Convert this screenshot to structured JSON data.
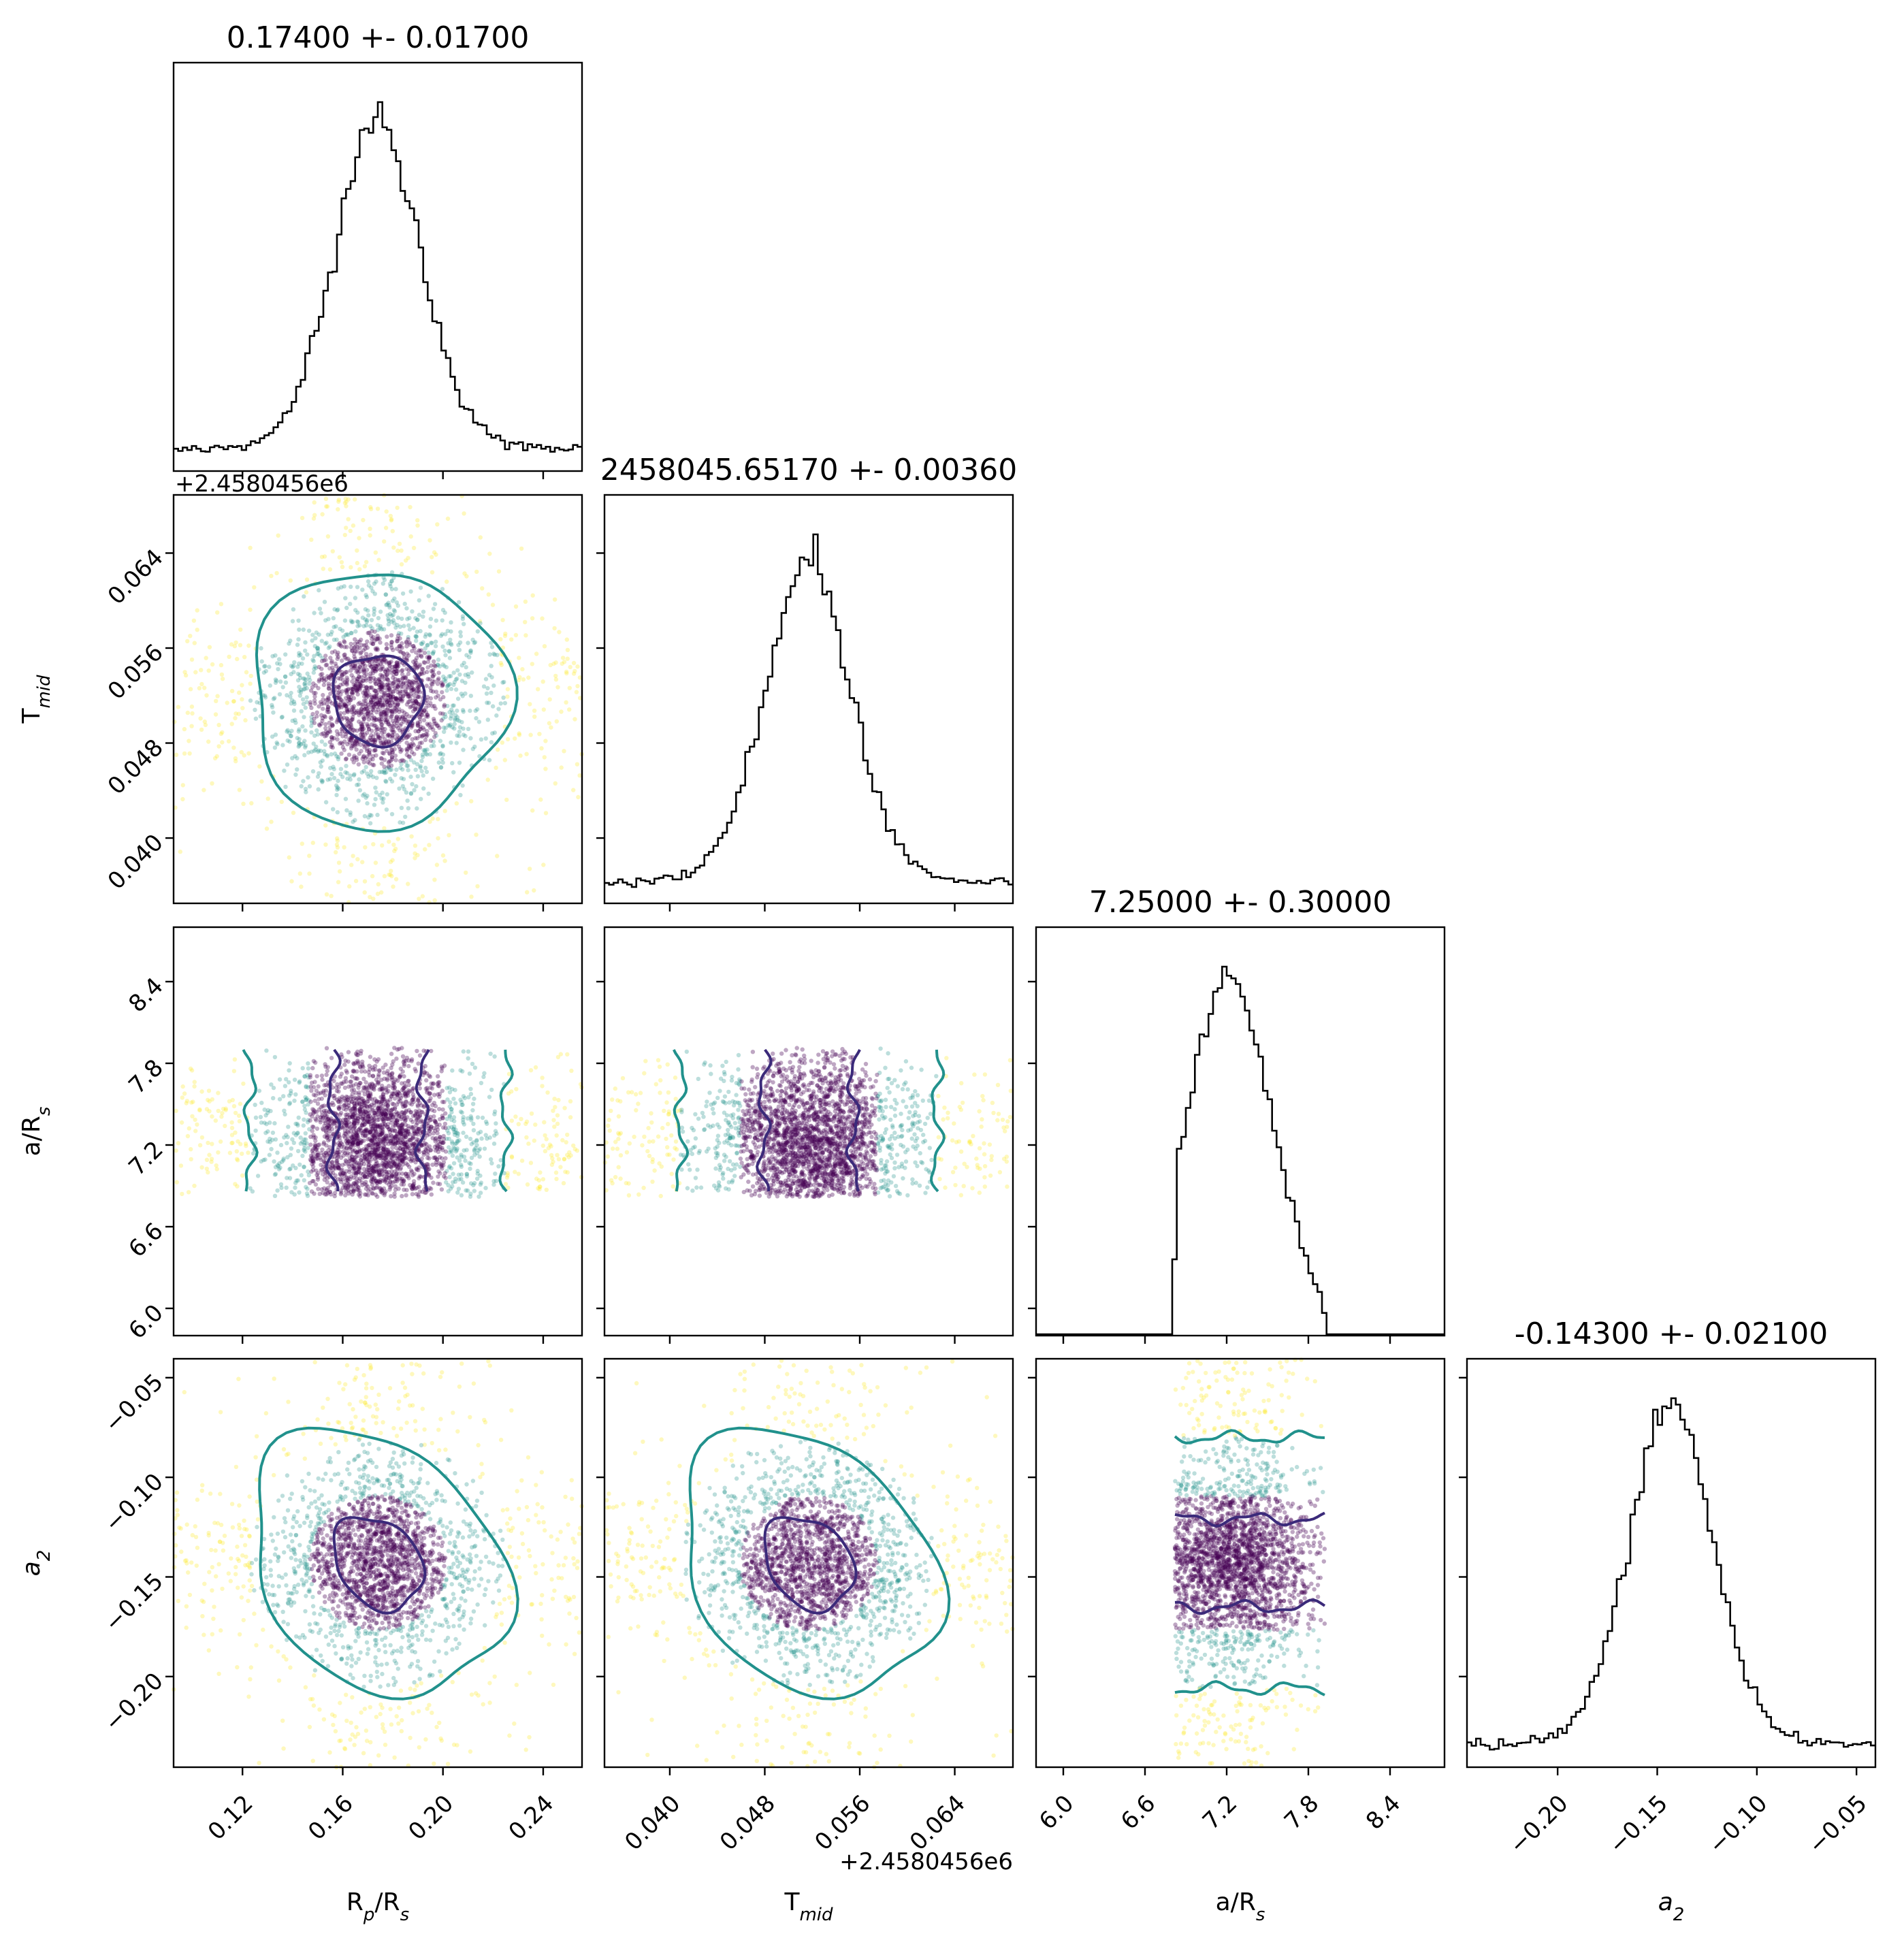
{
  "chart_data": {
    "type": "scatter",
    "description": "",
    "colors": {
      "scatter_far": "#fde725",
      "scatter_mid": "#21918c",
      "scatter_core": "#440154",
      "contour_inner": "#3b2a7a",
      "contour_outer": "#21918c",
      "histogram": "#000000"
    },
    "parameters": [
      {
        "key": "rp",
        "label": "R_p/R_s",
        "label_base": "R",
        "label_sub1": "p",
        "label_mid": "/R",
        "label_sub2": "s",
        "title": "0.17400 +- 0.01700",
        "median": 0.174,
        "sigma": 0.017,
        "range": [
          0.0925,
          0.2555
        ],
        "ticks": [
          0.12,
          0.16,
          0.2,
          0.24
        ],
        "tick_labels": [
          "0.12",
          "0.16",
          "0.20",
          "0.24"
        ]
      },
      {
        "key": "tmid",
        "label": "T_mid",
        "label_base": "T",
        "label_sub1": "mid",
        "title": "2458045.65170 +- 0.00360",
        "median": 0.0517,
        "sigma": 0.0036,
        "range": [
          0.0345,
          0.0689
        ],
        "offset_text": "+2.4580456e6",
        "ticks": [
          0.04,
          0.048,
          0.056,
          0.064
        ],
        "tick_labels": [
          "0.040",
          "0.048",
          "0.056",
          "0.064"
        ]
      },
      {
        "key": "ars",
        "label": "a/R_s",
        "label_base": "a/R",
        "label_sub1": "s",
        "title": "7.25000 +- 0.30000",
        "median": 7.25,
        "sigma": 0.3,
        "range": [
          5.8,
          8.8
        ],
        "ticks": [
          6.0,
          6.6,
          7.2,
          7.8,
          8.4
        ],
        "tick_labels": [
          "6.0",
          "6.6",
          "7.2",
          "7.8",
          "8.4"
        ]
      },
      {
        "key": "a2",
        "label": "a_2",
        "label_base": "a",
        "label_sub1": "2",
        "title": "-0.14300 +- 0.02100",
        "median": -0.143,
        "sigma": 0.021,
        "range": [
          -0.2455,
          -0.0405
        ],
        "ticks": [
          -0.2,
          -0.15,
          -0.1,
          -0.05
        ],
        "tick_labels": [
          "−0.20",
          "−0.15",
          "−0.10",
          "−0.05"
        ]
      }
    ]
  }
}
